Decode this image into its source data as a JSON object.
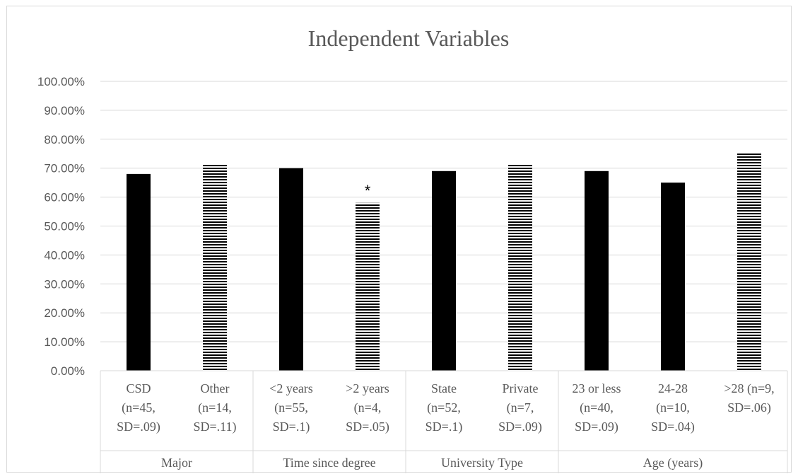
{
  "chart_data": {
    "type": "bar",
    "title": "Independent Variables",
    "xlabel": "",
    "ylabel": "",
    "ylim": [
      0,
      1
    ],
    "yticks": [
      "0.00%",
      "10.00%",
      "20.00%",
      "30.00%",
      "40.00%",
      "50.00%",
      "60.00%",
      "70.00%",
      "80.00%",
      "90.00%",
      "100.00%"
    ],
    "grid": true,
    "legend": "none",
    "colors": {
      "solid": "#000000",
      "striped": "#000000",
      "grid": "#d9d9d9",
      "text": "#595959"
    },
    "groups": [
      {
        "name": "Major",
        "categories": [
          {
            "lines": [
              "CSD",
              "(n=45,",
              "SD=.09)"
            ],
            "value": 0.68,
            "pattern": "solid"
          },
          {
            "lines": [
              "Other",
              "(n=14,",
              "SD=.11)"
            ],
            "value": 0.715,
            "pattern": "striped"
          }
        ]
      },
      {
        "name": "Time since degree",
        "categories": [
          {
            "lines": [
              "<2 years",
              "(n=55,",
              "SD=.1)"
            ],
            "value": 0.7,
            "pattern": "solid"
          },
          {
            "lines": [
              ">2 years",
              "(n=4,",
              "SD=.05)"
            ],
            "value": 0.58,
            "pattern": "striped",
            "annotation": "*"
          }
        ]
      },
      {
        "name": "University Type",
        "categories": [
          {
            "lines": [
              "State",
              "(n=52,",
              "SD=.1)"
            ],
            "value": 0.69,
            "pattern": "solid"
          },
          {
            "lines": [
              "Private",
              "(n=7,",
              "SD=.09)"
            ],
            "value": 0.715,
            "pattern": "striped"
          }
        ]
      },
      {
        "name": "Age (years)",
        "categories": [
          {
            "lines": [
              "23 or less",
              "(n=40,",
              "SD=.09)"
            ],
            "value": 0.69,
            "pattern": "solid"
          },
          {
            "lines": [
              "24-28",
              "(n=10,",
              "SD=.04)"
            ],
            "value": 0.65,
            "pattern": "solid"
          },
          {
            "lines": [
              ">28  (n=9,",
              "SD=.06)"
            ],
            "value": 0.755,
            "pattern": "striped"
          }
        ]
      }
    ]
  }
}
